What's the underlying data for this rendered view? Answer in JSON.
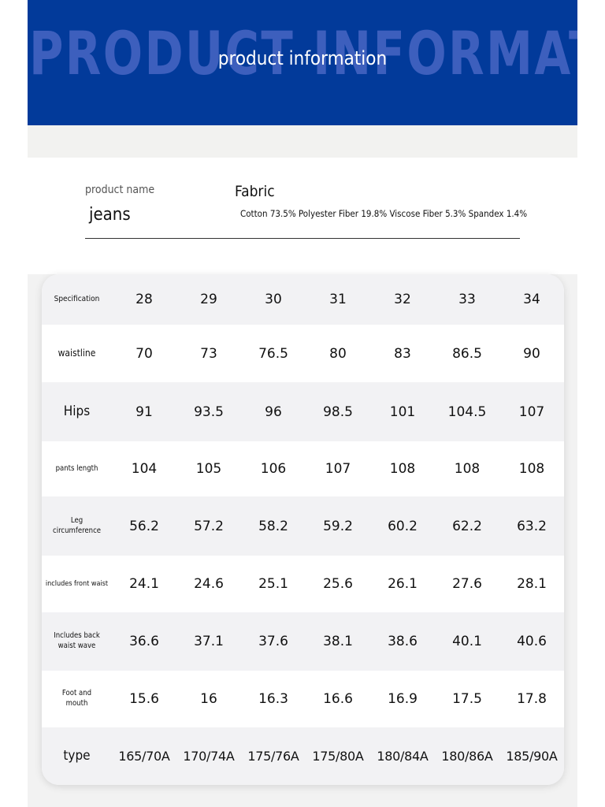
{
  "header": {
    "background_text": "PRODUCT INFORMATION",
    "title": "product information",
    "accent": "#023a9a"
  },
  "info": {
    "name_label": "product name",
    "name_value": "jeans",
    "fabric_label": "Fabric",
    "fabric_value": "Cotton 73.5% Polyester Fiber 19.8% Viscose Fiber 5.3% Spandex 1.4%"
  },
  "table": {
    "rows": [
      {
        "label": "Specification",
        "values": [
          "28",
          "29",
          "30",
          "31",
          "32",
          "33",
          "34"
        ]
      },
      {
        "label": "waistline",
        "values": [
          "70",
          "73",
          "76.5",
          "80",
          "83",
          "86.5",
          "90"
        ]
      },
      {
        "label": "Hips",
        "values": [
          "91",
          "93.5",
          "96",
          "98.5",
          "101",
          "104.5",
          "107"
        ]
      },
      {
        "label": "pants length",
        "values": [
          "104",
          "105",
          "106",
          "107",
          "108",
          "108",
          "108"
        ]
      },
      {
        "label": "Leg circumference",
        "values": [
          "56.2",
          "57.2",
          "58.2",
          "59.2",
          "60.2",
          "62.2",
          "63.2"
        ]
      },
      {
        "label": "includes front waist",
        "values": [
          "24.1",
          "24.6",
          "25.1",
          "25.6",
          "26.1",
          "27.6",
          "28.1"
        ]
      },
      {
        "label": "Includes back waist wave",
        "values": [
          "36.6",
          "37.1",
          "37.6",
          "38.1",
          "38.6",
          "40.1",
          "40.6"
        ]
      },
      {
        "label": "Foot and mouth",
        "values": [
          "15.6",
          "16",
          "16.3",
          "16.6",
          "16.9",
          "17.5",
          "17.8"
        ]
      },
      {
        "label": "type",
        "values": [
          "165/70A",
          "170/74A",
          "175/76A",
          "175/80A",
          "180/84A",
          "180/86A",
          "185/90A"
        ]
      }
    ]
  }
}
